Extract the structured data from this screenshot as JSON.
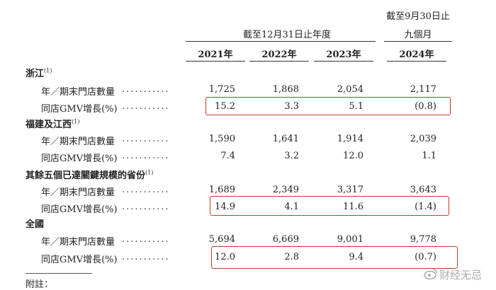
{
  "header": {
    "period_group": "截至12月31日止年度",
    "nine_month_top": "截至9月30日止",
    "nine_month_bottom": "九個月",
    "years": [
      "2021年",
      "2022年",
      "2023年",
      "2024年"
    ]
  },
  "dots": "...........",
  "regions": [
    {
      "name": "浙江",
      "note": "(1)",
      "rows": [
        {
          "label": "年／期末門店數量",
          "values": [
            "1,725",
            "1,868",
            "2,054",
            "2,117"
          ]
        },
        {
          "label": "同店GMV增長(%)",
          "values": [
            "15.2",
            "3.3",
            "5.1",
            "(0.8)"
          ]
        }
      ]
    },
    {
      "name": "福建及江西",
      "note": "(1)",
      "rows": [
        {
          "label": "年／期末門店數量",
          "values": [
            "1,590",
            "1,641",
            "1,914",
            "2,039"
          ]
        },
        {
          "label": "同店GMV增長(%)",
          "values": [
            "7.4",
            "3.2",
            "12.0",
            "1.1"
          ]
        }
      ]
    },
    {
      "name": "其餘五個已達關鍵規模的省份",
      "note": "(1)",
      "rows": [
        {
          "label": "年／期末門店數量",
          "values": [
            "1,689",
            "2,349",
            "3,317",
            "3,643"
          ]
        },
        {
          "label": "同店GMV增長(%)",
          "values": [
            "14.9",
            "4.1",
            "11.6",
            "(1.4)"
          ]
        }
      ]
    },
    {
      "name": "全國",
      "note": "",
      "rows": [
        {
          "label": "年／期末門店數量",
          "values": [
            "5,694",
            "6,669",
            "9,001",
            "9,778"
          ]
        },
        {
          "label": "同店GMV增長(%)",
          "values": [
            "12.0",
            "2.8",
            "9.4",
            "(0.7)"
          ]
        }
      ]
    }
  ],
  "footnote_heading": "附註：",
  "watermark": "财经无忌",
  "colors": {
    "highlight": "#c0392b",
    "rule": "#333333"
  }
}
